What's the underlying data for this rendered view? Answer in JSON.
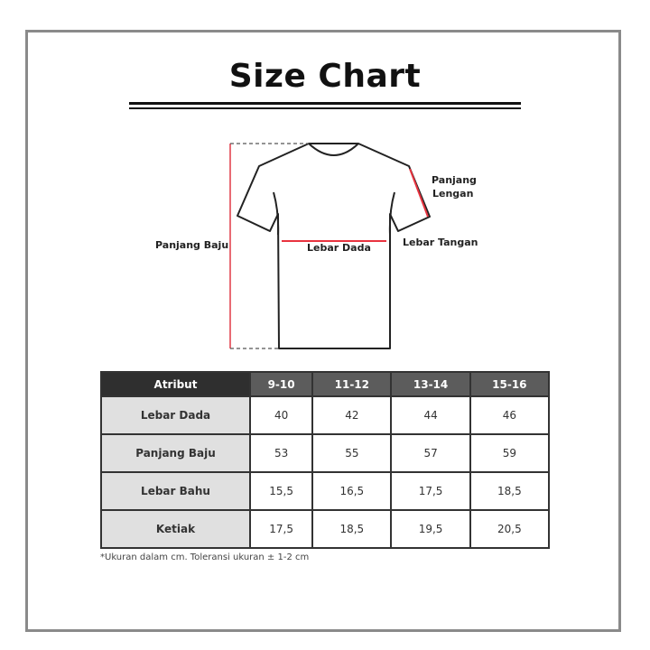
{
  "title": "Size Chart",
  "diagram": {
    "labels": {
      "panjang_baju": "Panjang Baju",
      "lebar_dada": "Lebar Dada",
      "panjang_lengan_1": "Panjang",
      "panjang_lengan_2": "Lengan",
      "lebar_tangan": "Lebar Tangan"
    },
    "measure_color": "#e8333f"
  },
  "table": {
    "headers": [
      "Atribut",
      "9-10",
      "11-12",
      "13-14",
      "15-16"
    ],
    "rows": [
      {
        "label": "Lebar Dada",
        "values": [
          "40",
          "42",
          "44",
          "46"
        ]
      },
      {
        "label": "Panjang Baju",
        "values": [
          "53",
          "55",
          "57",
          "59"
        ]
      },
      {
        "label": "Lebar Bahu",
        "values": [
          "15,5",
          "16,5",
          "17,5",
          "18,5"
        ]
      },
      {
        "label": "Ketiak",
        "values": [
          "17,5",
          "18,5",
          "19,5",
          "20,5"
        ]
      }
    ]
  },
  "note": "*Ukuran dalam cm. Toleransi ukuran ± 1-2 cm"
}
